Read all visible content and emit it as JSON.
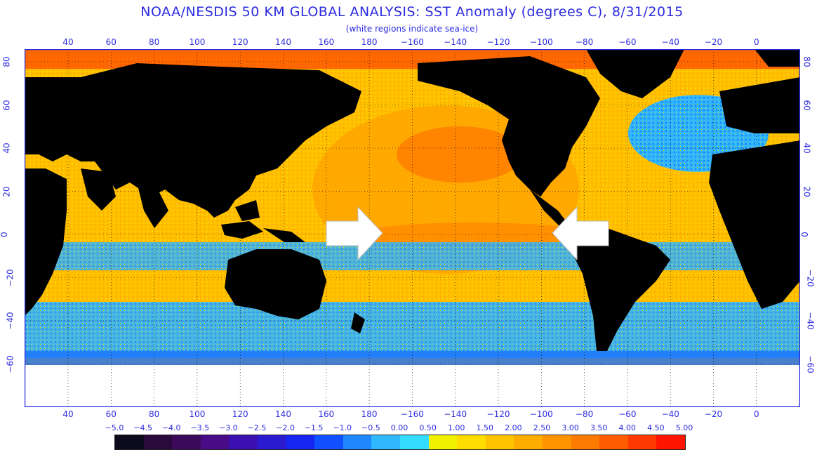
{
  "title": "NOAA/NESDIS 50 KM GLOBAL ANALYSIS: SST Anomaly (degrees C), 8/31/2015",
  "subtitle": "(white regions indicate sea-ice)",
  "axes": {
    "longitude_ticks": [
      "40",
      "60",
      "80",
      "100",
      "120",
      "140",
      "160",
      "180",
      "−160",
      "−140",
      "−120",
      "−100",
      "−80",
      "−60",
      "−40",
      "−20",
      "0"
    ],
    "latitude_ticks": [
      "80",
      "60",
      "40",
      "20",
      "0",
      "−20",
      "−40",
      "−60"
    ]
  },
  "arrows": {
    "left": "arrow-right-icon",
    "right": "arrow-left-icon"
  },
  "colorbar": {
    "labels": [
      "−5.0",
      "−4.5",
      "−4.0",
      "−3.5",
      "−3.0",
      "−2.5",
      "−2.0",
      "−1.5",
      "−1.0",
      "−0.5",
      "0.00",
      "0.50",
      "1.00",
      "1.50",
      "2.00",
      "2.50",
      "3.00",
      "3.50",
      "4.00",
      "4.50",
      "5.00"
    ],
    "colors": [
      "#0a0a1a",
      "#2a0a3a",
      "#3c0a5a",
      "#4a0c86",
      "#3a10b0",
      "#2a1ad0",
      "#1626f0",
      "#1050ff",
      "#1f88ff",
      "#30b8ff",
      "#33ddff",
      "#f0f000",
      "#ffdd00",
      "#ffc400",
      "#ffac00",
      "#ff9400",
      "#ff7a00",
      "#ff5c00",
      "#ff3a00",
      "#ff1400"
    ]
  }
}
